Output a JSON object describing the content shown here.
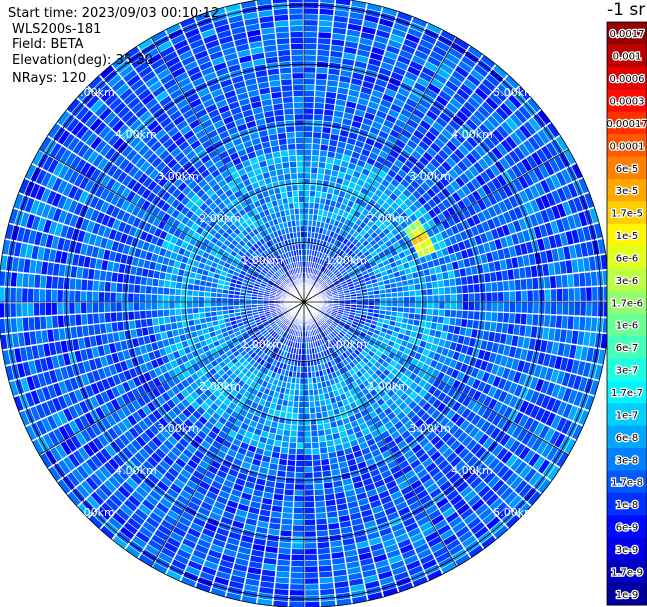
{
  "colors": {
    "background": "#ffffff",
    "grid": "#000000",
    "ring_label": "#ffffff",
    "colormap": [
      "#00008f",
      "#0000ff",
      "#0080ff",
      "#00ffff",
      "#80ff80",
      "#ffff00",
      "#ff8000",
      "#ff0000",
      "#800000"
    ]
  },
  "header": {
    "start_time": "Start time: 2023/09/03 00:10:12",
    "station": "WLS200s-181",
    "field": "Field: BETA",
    "elevation": "Elevation(deg): 35.30",
    "nrays": "NRays: 120"
  },
  "colorbar": {
    "unit_label": "-1 sr",
    "ticks": [
      "0.0017",
      "0.001",
      "0.0006",
      "0.0003",
      "0.00017",
      "0.0001",
      "6e-5",
      "3e-5",
      "1.7e-5",
      "1e-5",
      "6e-6",
      "3e-6",
      "1.7e-6",
      "1e-6",
      "6e-7",
      "3e-7",
      "1.7e-7",
      "1e-7",
      "6e-8",
      "3e-8",
      "1.7e-8",
      "1e-8",
      "6e-9",
      "3e-9",
      "1.7e-9",
      "1e-9"
    ]
  },
  "chart_data": {
    "type": "heatmap",
    "projection": "polar",
    "field": "BETA",
    "rays": 120,
    "scale": "log",
    "color_range": [
      1e-09,
      0.0017
    ],
    "range_rings_km": [
      1,
      2,
      3,
      4,
      5
    ],
    "ring_labels": [
      "1.00km",
      "2.00km",
      "3.00km",
      "4.00km",
      "5.00km"
    ],
    "background_value": 2e-08,
    "hotspot": {
      "azimuth_deg": 62,
      "range_km": [
        2.05,
        2.4
      ],
      "value": 1e-05
    }
  }
}
